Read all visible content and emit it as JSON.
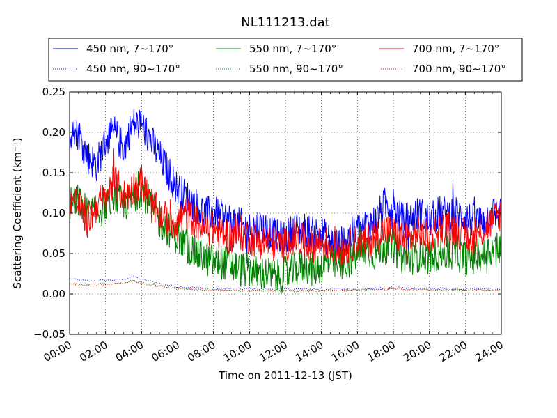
{
  "chart_data": {
    "type": "line",
    "title": "NL111213.dat",
    "xlabel": "Time on 2011-12-13 (JST)",
    "ylabel": "Scattering Coefficient (km",
    "ylabel_sup": "−1",
    "ylabel_tail": ")",
    "x_tick_labels": [
      "00:00",
      "02:00",
      "04:00",
      "06:00",
      "08:00",
      "10:00",
      "12:00",
      "14:00",
      "16:00",
      "18:00",
      "20:00",
      "22:00",
      "24:00"
    ],
    "y_tick_labels": [
      "−0.05",
      "0.00",
      "0.05",
      "0.10",
      "0.15",
      "0.20",
      "0.25"
    ],
    "xlim": [
      0,
      24
    ],
    "ylim": [
      -0.05,
      0.25
    ],
    "x_unit": "hours (JST)",
    "grid": true,
    "legend_position": "top",
    "legend_columns": 3,
    "series": [
      {
        "name": "450 nm, 7∼170°",
        "color": "#0000ff",
        "style": "solid",
        "x": [
          0,
          0.5,
          1,
          1.5,
          2,
          2.5,
          3,
          3.5,
          4,
          4.5,
          5,
          5.5,
          6,
          6.5,
          7,
          7.5,
          8,
          8.5,
          9,
          9.5,
          10,
          10.5,
          11,
          11.5,
          12,
          12.5,
          13,
          13.5,
          14,
          14.5,
          15,
          15.5,
          16,
          16.5,
          17,
          17.5,
          18,
          18.5,
          19,
          19.5,
          20,
          20.5,
          21,
          21.5,
          22,
          22.5,
          23,
          23.5,
          24
        ],
        "y": [
          0.19,
          0.2,
          0.17,
          0.16,
          0.19,
          0.2,
          0.18,
          0.21,
          0.21,
          0.19,
          0.17,
          0.15,
          0.13,
          0.12,
          0.11,
          0.1,
          0.1,
          0.095,
          0.09,
          0.085,
          0.08,
          0.085,
          0.08,
          0.07,
          0.07,
          0.08,
          0.08,
          0.075,
          0.075,
          0.065,
          0.06,
          0.07,
          0.08,
          0.085,
          0.09,
          0.11,
          0.11,
          0.09,
          0.095,
          0.1,
          0.09,
          0.1,
          0.1,
          0.1,
          0.095,
          0.09,
          0.09,
          0.1,
          0.1
        ]
      },
      {
        "name": "450 nm, 90∼170°",
        "color": "#0000ff",
        "style": "dotted",
        "x": [
          0,
          1,
          2,
          3,
          3.5,
          4,
          5,
          6,
          8,
          10,
          12,
          14,
          16,
          18,
          20,
          22,
          24
        ],
        "y": [
          0.019,
          0.016,
          0.017,
          0.018,
          0.022,
          0.018,
          0.013,
          0.009,
          0.007,
          0.006,
          0.006,
          0.006,
          0.006,
          0.008,
          0.007,
          0.006,
          0.007
        ]
      },
      {
        "name": "550 nm, 7∼170°",
        "color": "#008000",
        "style": "solid",
        "x": [
          0,
          0.5,
          1,
          1.5,
          2,
          2.5,
          3,
          3.5,
          4,
          4.5,
          5,
          5.5,
          6,
          6.5,
          7,
          7.5,
          8,
          8.5,
          9,
          9.5,
          10,
          10.5,
          11,
          11.5,
          12,
          12.5,
          13,
          13.5,
          14,
          14.5,
          15,
          15.5,
          16,
          16.5,
          17,
          17.5,
          18,
          18.5,
          19,
          19.5,
          20,
          20.5,
          21,
          21.5,
          22,
          22.5,
          23,
          23.5,
          24
        ],
        "y": [
          0.11,
          0.115,
          0.1,
          0.1,
          0.11,
          0.12,
          0.11,
          0.12,
          0.13,
          0.11,
          0.09,
          0.08,
          0.07,
          0.06,
          0.05,
          0.045,
          0.04,
          0.04,
          0.035,
          0.03,
          0.03,
          0.025,
          0.025,
          0.02,
          0.025,
          0.03,
          0.035,
          0.03,
          0.035,
          0.04,
          0.035,
          0.04,
          0.05,
          0.055,
          0.05,
          0.06,
          0.06,
          0.045,
          0.045,
          0.05,
          0.045,
          0.05,
          0.05,
          0.05,
          0.045,
          0.045,
          0.05,
          0.055,
          0.06
        ]
      },
      {
        "name": "550 nm, 90∼170°",
        "color": "#008000",
        "style": "dotted",
        "x": [
          0,
          1,
          2,
          3,
          3.5,
          4,
          5,
          6,
          8,
          10,
          12,
          14,
          16,
          18,
          20,
          22,
          24
        ],
        "y": [
          0.013,
          0.012,
          0.013,
          0.014,
          0.017,
          0.014,
          0.01,
          0.007,
          0.005,
          0.004,
          0.004,
          0.004,
          0.005,
          0.006,
          0.005,
          0.005,
          0.005
        ]
      },
      {
        "name": "700 nm, 7∼170°",
        "color": "#ff0000",
        "style": "solid",
        "x": [
          0,
          0.5,
          1,
          1.5,
          2,
          2.5,
          3,
          3.5,
          4,
          4.5,
          5,
          5.5,
          6,
          6.5,
          7,
          7.5,
          8,
          8.5,
          9,
          9.5,
          10,
          10.5,
          11,
          11.5,
          12,
          12.5,
          13,
          13.5,
          14,
          14.5,
          15,
          15.5,
          16,
          16.5,
          17,
          17.5,
          18,
          18.5,
          19,
          19.5,
          20,
          20.5,
          21,
          21.5,
          22,
          22.5,
          23,
          23.5,
          24
        ],
        "y": [
          0.12,
          0.11,
          0.09,
          0.11,
          0.12,
          0.14,
          0.12,
          0.13,
          0.14,
          0.11,
          0.1,
          0.09,
          0.09,
          0.1,
          0.09,
          0.08,
          0.08,
          0.075,
          0.07,
          0.075,
          0.07,
          0.065,
          0.065,
          0.06,
          0.06,
          0.07,
          0.065,
          0.06,
          0.065,
          0.06,
          0.055,
          0.06,
          0.065,
          0.065,
          0.07,
          0.08,
          0.075,
          0.07,
          0.07,
          0.075,
          0.07,
          0.08,
          0.08,
          0.08,
          0.07,
          0.07,
          0.08,
          0.09,
          0.1
        ]
      },
      {
        "name": "700 nm, 90∼170°",
        "color": "#ff0000",
        "style": "dotted",
        "x": [
          0,
          1,
          2,
          3,
          3.5,
          4,
          5,
          6,
          8,
          10,
          12,
          14,
          16,
          18,
          20,
          22,
          24
        ],
        "y": [
          0.012,
          0.011,
          0.012,
          0.013,
          0.016,
          0.013,
          0.009,
          0.006,
          0.005,
          0.004,
          0.004,
          0.004,
          0.005,
          0.006,
          0.005,
          0.005,
          0.005
        ]
      }
    ]
  }
}
